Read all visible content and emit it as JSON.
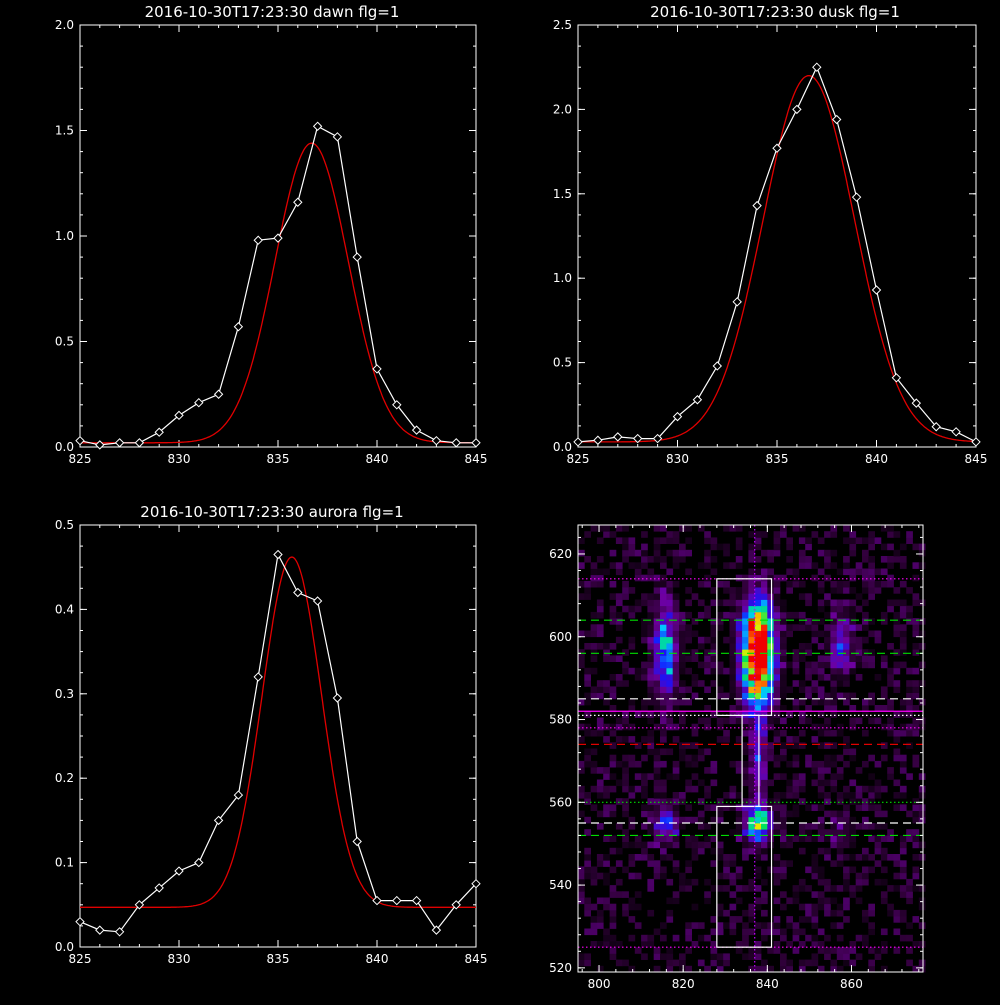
{
  "chart_data": [
    {
      "id": "dawn",
      "type": "line",
      "title": "2016-10-30T17:23:30 dawn flg=1",
      "xlim": [
        825,
        845
      ],
      "ylim": [
        0,
        2.0
      ],
      "xticks": [
        825,
        830,
        835,
        840,
        845
      ],
      "yticks": [
        0.0,
        0.5,
        1.0,
        1.5,
        2.0
      ],
      "ytick_labels": [
        "0.0",
        "0.5",
        "1.0",
        "1.5",
        "2.0"
      ],
      "series": [
        {
          "kind": "data",
          "color": "#ffffff",
          "marker": "diamond",
          "x": [
            825,
            826,
            827,
            828,
            829,
            830,
            831,
            832,
            833,
            834,
            835,
            836,
            837,
            838,
            839,
            840,
            841,
            842,
            843,
            844,
            845
          ],
          "y": [
            0.03,
            0.01,
            0.02,
            0.02,
            0.07,
            0.15,
            0.21,
            0.25,
            0.57,
            0.98,
            0.99,
            1.16,
            1.52,
            1.47,
            0.9,
            0.37,
            0.2,
            0.08,
            0.03,
            0.02,
            0.02
          ]
        },
        {
          "kind": "fit",
          "color": "#e00000",
          "gaussian": {
            "amplitude": 1.42,
            "center": 836.7,
            "sigma": 1.85,
            "baseline": 0.02
          }
        }
      ]
    },
    {
      "id": "dusk",
      "type": "line",
      "title": "2016-10-30T17:23:30 dusk flg=1",
      "xlim": [
        825,
        845
      ],
      "ylim": [
        0,
        2.5
      ],
      "xticks": [
        825,
        830,
        835,
        840,
        845
      ],
      "yticks": [
        0.0,
        0.5,
        1.0,
        1.5,
        2.0,
        2.5
      ],
      "ytick_labels": [
        "0.0",
        "0.5",
        "1.0",
        "1.5",
        "2.0",
        "2.5"
      ],
      "series": [
        {
          "kind": "data",
          "color": "#ffffff",
          "marker": "diamond",
          "x": [
            825,
            826,
            827,
            828,
            829,
            830,
            831,
            832,
            833,
            834,
            835,
            836,
            837,
            838,
            839,
            840,
            841,
            842,
            843,
            844,
            845
          ],
          "y": [
            0.03,
            0.04,
            0.06,
            0.05,
            0.05,
            0.18,
            0.28,
            0.48,
            0.86,
            1.43,
            1.77,
            2.0,
            2.25,
            1.94,
            1.48,
            0.93,
            0.41,
            0.26,
            0.12,
            0.09,
            0.03
          ]
        },
        {
          "kind": "fit",
          "color": "#e00000",
          "gaussian": {
            "amplitude": 2.17,
            "center": 836.6,
            "sigma": 2.3,
            "baseline": 0.03
          }
        }
      ]
    },
    {
      "id": "aurora",
      "type": "line",
      "title": "2016-10-30T17:23:30 aurora flg=1",
      "xlim": [
        825,
        845
      ],
      "ylim": [
        0,
        0.5
      ],
      "xticks": [
        825,
        830,
        835,
        840,
        845
      ],
      "yticks": [
        0.0,
        0.1,
        0.2,
        0.3,
        0.4,
        0.5
      ],
      "ytick_labels": [
        "0.0",
        "0.1",
        "0.2",
        "0.3",
        "0.4",
        "0.5"
      ],
      "series": [
        {
          "kind": "data",
          "color": "#ffffff",
          "marker": "diamond",
          "x": [
            825,
            826,
            827,
            828,
            829,
            830,
            831,
            832,
            833,
            834,
            835,
            836,
            837,
            838,
            839,
            840,
            841,
            842,
            843,
            844,
            845
          ],
          "y": [
            0.03,
            0.02,
            0.018,
            0.05,
            0.07,
            0.09,
            0.1,
            0.15,
            0.18,
            0.32,
            0.465,
            0.42,
            0.41,
            0.295,
            0.125,
            0.055,
            0.055,
            0.055,
            0.02,
            0.05,
            0.075
          ]
        },
        {
          "kind": "fit",
          "color": "#e00000",
          "gaussian": {
            "amplitude": 0.415,
            "center": 835.7,
            "sigma": 1.5,
            "baseline": 0.047
          }
        }
      ]
    },
    {
      "id": "image",
      "type": "heatmap",
      "title": "",
      "xlim": [
        795,
        877
      ],
      "ylim": [
        519,
        627
      ],
      "xticks": [
        800,
        820,
        840,
        860
      ],
      "yticks": [
        520,
        540,
        560,
        580,
        600,
        620
      ],
      "blobs": [
        {
          "x": 837,
          "y": 598,
          "sx": 2.6,
          "sy": 7,
          "amp": 1.0
        },
        {
          "x": 837,
          "y": 590,
          "sx": 2.6,
          "sy": 6,
          "amp": 0.55
        },
        {
          "x": 837,
          "y": 554,
          "sx": 2.2,
          "sy": 3,
          "amp": 0.65
        },
        {
          "x": 837,
          "y": 570,
          "sx": 1.3,
          "sy": 8,
          "amp": 0.3
        },
        {
          "x": 815,
          "y": 596,
          "sx": 2.0,
          "sy": 8,
          "amp": 0.45
        },
        {
          "x": 815,
          "y": 554,
          "sx": 2.0,
          "sy": 3,
          "amp": 0.35
        },
        {
          "x": 857,
          "y": 598,
          "sx": 2.0,
          "sy": 5,
          "amp": 0.3
        },
        {
          "x": 857,
          "y": 553,
          "sx": 1.8,
          "sy": 3,
          "amp": 0.15
        }
      ],
      "overlays": {
        "vline_dotted": {
          "x": 837,
          "color": "#c000ff"
        },
        "boxes": [
          {
            "x": [
              828,
              841
            ],
            "y": [
              581,
              614
            ],
            "color": "#ffffff"
          },
          {
            "x": [
              828,
              841
            ],
            "y": [
              525,
              559
            ],
            "color": "#ffffff"
          },
          {
            "x": [
              834,
              838
            ],
            "y": [
              559,
              581
            ],
            "color": "#ffffff"
          }
        ],
        "hlines": [
          {
            "y": 614,
            "style": "dotted",
            "color": "#ff00ff"
          },
          {
            "y": 604,
            "style": "dashed",
            "color": "#00dd00"
          },
          {
            "y": 596,
            "style": "dashed",
            "color": "#00dd00"
          },
          {
            "y": 585,
            "style": "dashed",
            "color": "#ffffff"
          },
          {
            "y": 582,
            "style": "solid",
            "color": "#ff00ff"
          },
          {
            "y": 581,
            "style": "dotted",
            "color": "#ffffff"
          },
          {
            "y": 578,
            "style": "dotted",
            "color": "#ff00ff"
          },
          {
            "y": 574,
            "style": "dashed",
            "color": "#e00000"
          },
          {
            "y": 560,
            "style": "dotted",
            "color": "#00dd00"
          },
          {
            "y": 555,
            "style": "dashed",
            "color": "#ffffff"
          },
          {
            "y": 552,
            "style": "dashed",
            "color": "#00dd00"
          },
          {
            "y": 525,
            "style": "dotted",
            "color": "#ff00ff"
          }
        ]
      }
    }
  ]
}
